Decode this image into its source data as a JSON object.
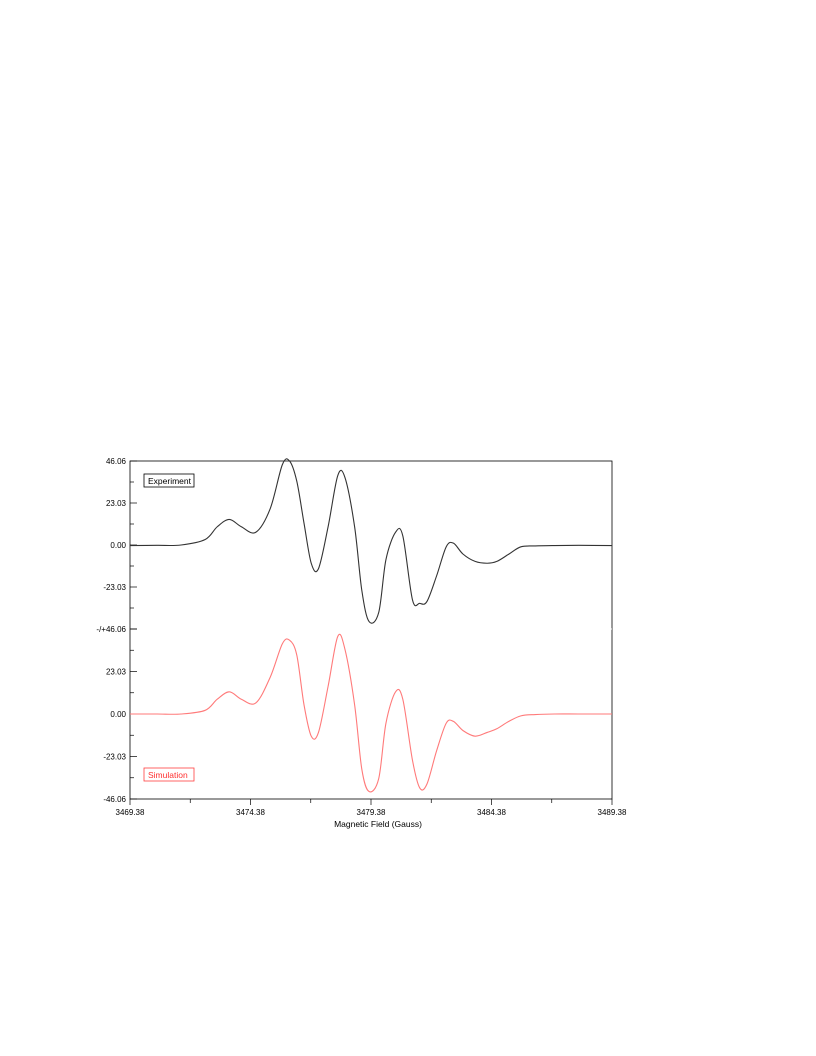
{
  "chart_data": {
    "type": "line",
    "title": "",
    "xlabel": "Magnetic Field (Gauss)",
    "ylabel": "",
    "xlim": [
      3469.38,
      3489.38
    ],
    "x_tick_labels": [
      "3469.38",
      "3474.38",
      "3479.38",
      "3484.38",
      "3489.38"
    ],
    "grid": false,
    "panels": [
      {
        "name": "Experiment",
        "legend_label": "Experiment",
        "legend_position": "top-left",
        "color": "#333333",
        "ylim": [
          -46.06,
          46.06
        ],
        "y_tick_labels": [
          "46.06",
          "23.03",
          "0.00",
          "-23.03",
          "-/+46.06"
        ],
        "x": [
          3469.38,
          3470.5,
          3471.5,
          3472.5,
          3473.0,
          3473.5,
          3474.0,
          3474.6,
          3475.2,
          3475.7,
          3476.0,
          3476.3,
          3476.6,
          3476.9,
          3477.2,
          3477.6,
          3478.0,
          3478.3,
          3478.7,
          3479.0,
          3479.3,
          3479.7,
          3480.0,
          3480.4,
          3480.7,
          3481.1,
          3481.4,
          3481.7,
          3482.1,
          3482.5,
          3482.8,
          3483.2,
          3483.7,
          3484.2,
          3484.6,
          3485.1,
          3485.6,
          3486.2,
          3487.0,
          3488.0,
          3489.38
        ],
        "y": [
          -0.3,
          -0.2,
          0.0,
          3.0,
          10.0,
          14.0,
          10.0,
          7.0,
          20.0,
          44.0,
          46.06,
          35.0,
          12.0,
          -10.0,
          -13.0,
          10.0,
          38.0,
          37.0,
          10.0,
          -25.0,
          -42.0,
          -37.0,
          -8.0,
          7.0,
          5.0,
          -30.0,
          -32.0,
          -31.0,
          -17.0,
          -1.0,
          1.0,
          -5.0,
          -9.0,
          -10.0,
          -9.0,
          -5.0,
          -1.0,
          -0.5,
          -0.3,
          -0.2,
          -0.3
        ]
      },
      {
        "name": "Simulation",
        "legend_label": "Simulation",
        "legend_position": "bottom-left",
        "color": "#ff7a7a",
        "ylim": [
          -46.06,
          46.06
        ],
        "y_tick_labels": [
          "23.03",
          "0.00",
          "-23.03",
          "-46.06"
        ],
        "x": [
          3469.38,
          3470.5,
          3471.5,
          3472.5,
          3473.0,
          3473.5,
          3474.0,
          3474.6,
          3475.2,
          3475.7,
          3476.0,
          3476.3,
          3476.6,
          3476.9,
          3477.2,
          3477.6,
          3478.0,
          3478.3,
          3478.7,
          3479.0,
          3479.3,
          3479.7,
          3480.0,
          3480.4,
          3480.7,
          3481.1,
          3481.4,
          3481.7,
          3482.1,
          3482.5,
          3482.8,
          3483.2,
          3483.7,
          3484.2,
          3484.6,
          3485.1,
          3485.6,
          3486.2,
          3487.0,
          3488.0,
          3489.38
        ],
        "y": [
          0.0,
          0.0,
          0.0,
          2.0,
          8.0,
          12.0,
          8.0,
          6.0,
          20.0,
          38.0,
          40.0,
          32.0,
          5.0,
          -12.0,
          -10.0,
          15.0,
          42.0,
          35.0,
          5.0,
          -30.0,
          -42.0,
          -35.0,
          -5.0,
          12.0,
          8.0,
          -25.0,
          -40.0,
          -38.0,
          -20.0,
          -5.0,
          -4.0,
          -9.0,
          -12.0,
          -10.0,
          -8.0,
          -4.0,
          -1.0,
          -0.3,
          0.0,
          0.0,
          0.0
        ]
      }
    ]
  }
}
